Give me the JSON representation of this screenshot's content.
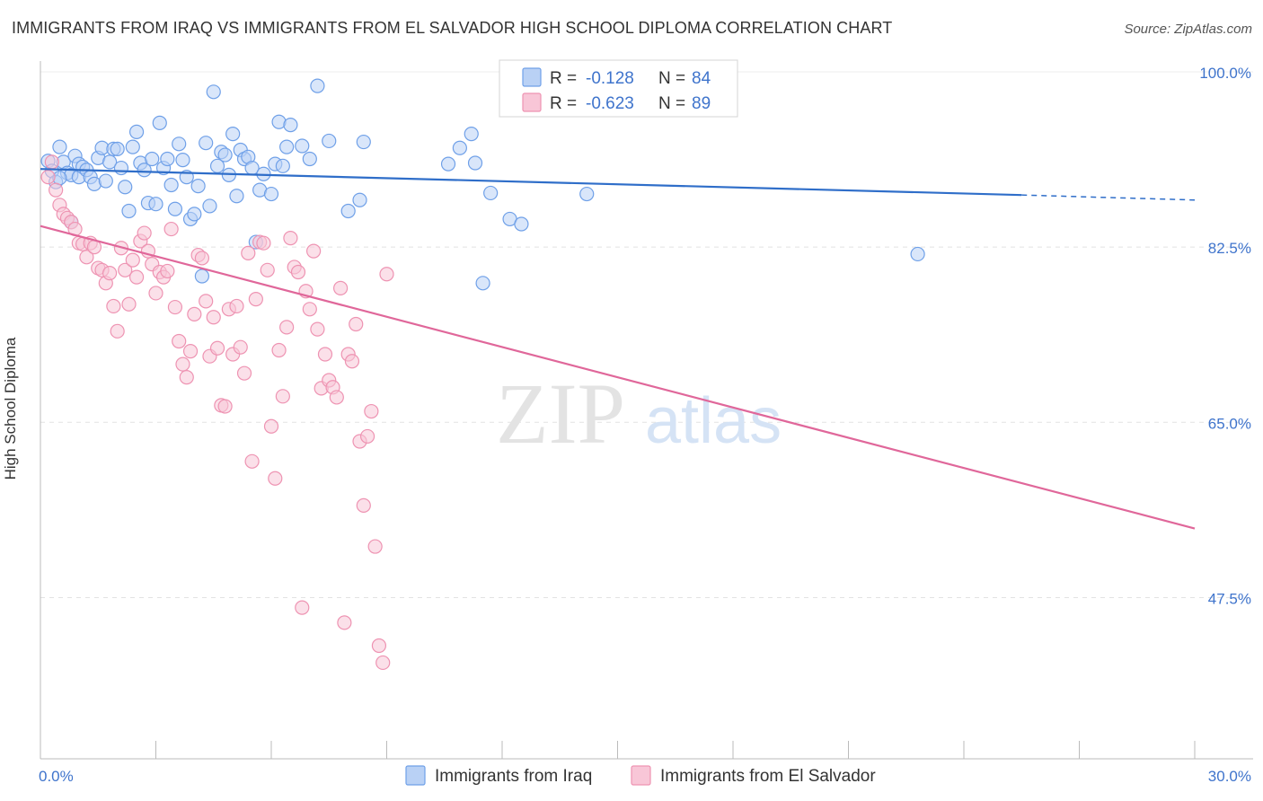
{
  "title": "IMMIGRANTS FROM IRAQ VS IMMIGRANTS FROM EL SALVADOR HIGH SCHOOL DIPLOMA CORRELATION CHART",
  "source": "Source: ZipAtlas.com",
  "watermark": {
    "zip": "ZIP",
    "atlas": "atlas"
  },
  "chart_data": {
    "type": "scatter",
    "ylabel": "High School Diploma",
    "xlim": [
      0.0,
      30.0
    ],
    "ylim": [
      31.4,
      100.0
    ],
    "x_ticks_labels": [
      "0.0%",
      "30.0%"
    ],
    "y_ticks": [
      {
        "value": 100.0,
        "label": "100.0%"
      },
      {
        "value": 82.5,
        "label": "82.5%"
      },
      {
        "value": 65.0,
        "label": "65.0%"
      },
      {
        "value": 47.5,
        "label": "47.5%"
      }
    ],
    "grid": true,
    "legend_position": "top-center",
    "series": [
      {
        "name": "Immigrants from Iraq",
        "color": "#6fa0e8",
        "fill": "#b9d1f5",
        "line_color": "#2f6ec9",
        "r_label": "R =",
        "r_value": "-0.128",
        "n_label": "N =",
        "n_value": "84",
        "trend": {
          "x0": 0.0,
          "y0": 90.3,
          "x1": 25.5,
          "y1": 87.7,
          "dash_x1": 30.0,
          "dash_y1": 87.2
        },
        "points": [
          [
            0.2,
            91.1
          ],
          [
            0.3,
            90.1
          ],
          [
            0.4,
            89.0
          ],
          [
            0.5,
            92.5
          ],
          [
            0.6,
            91.0
          ],
          [
            0.7,
            89.9
          ],
          [
            0.8,
            89.7
          ],
          [
            0.9,
            91.6
          ],
          [
            1.0,
            90.8
          ],
          [
            1.0,
            89.5
          ],
          [
            1.1,
            90.5
          ],
          [
            1.2,
            90.2
          ],
          [
            1.3,
            89.5
          ],
          [
            1.4,
            88.8
          ],
          [
            1.5,
            91.4
          ],
          [
            1.6,
            92.4
          ],
          [
            1.7,
            89.1
          ],
          [
            1.8,
            91.0
          ],
          [
            1.9,
            92.3
          ],
          [
            2.0,
            92.3
          ],
          [
            2.1,
            90.4
          ],
          [
            2.2,
            88.5
          ],
          [
            2.3,
            86.1
          ],
          [
            2.4,
            92.5
          ],
          [
            2.5,
            94.0
          ],
          [
            2.6,
            90.9
          ],
          [
            2.7,
            90.2
          ],
          [
            2.8,
            86.9
          ],
          [
            2.9,
            91.3
          ],
          [
            3.0,
            86.8
          ],
          [
            3.1,
            94.9
          ],
          [
            3.2,
            90.4
          ],
          [
            3.3,
            91.3
          ],
          [
            3.4,
            88.7
          ],
          [
            3.5,
            86.3
          ],
          [
            3.6,
            92.8
          ],
          [
            3.7,
            91.2
          ],
          [
            3.8,
            89.5
          ],
          [
            3.9,
            85.3
          ],
          [
            4.0,
            85.8
          ],
          [
            4.1,
            88.6
          ],
          [
            4.2,
            79.6
          ],
          [
            4.3,
            92.9
          ],
          [
            4.4,
            86.6
          ],
          [
            4.5,
            98.0
          ],
          [
            4.6,
            90.6
          ],
          [
            4.7,
            92.0
          ],
          [
            4.8,
            91.7
          ],
          [
            4.9,
            89.7
          ],
          [
            5.0,
            93.8
          ],
          [
            5.1,
            87.6
          ],
          [
            5.2,
            92.2
          ],
          [
            5.3,
            91.3
          ],
          [
            5.4,
            91.5
          ],
          [
            5.5,
            90.4
          ],
          [
            5.6,
            83.0
          ],
          [
            5.7,
            88.2
          ],
          [
            5.8,
            89.8
          ],
          [
            6.0,
            87.8
          ],
          [
            6.1,
            90.8
          ],
          [
            6.2,
            95.0
          ],
          [
            6.3,
            90.6
          ],
          [
            6.4,
            92.5
          ],
          [
            6.5,
            94.7
          ],
          [
            6.8,
            92.6
          ],
          [
            7.0,
            91.3
          ],
          [
            7.2,
            98.6
          ],
          [
            7.5,
            93.1
          ],
          [
            8.0,
            86.1
          ],
          [
            8.3,
            87.2
          ],
          [
            8.4,
            93.0
          ],
          [
            10.6,
            90.8
          ],
          [
            10.9,
            92.4
          ],
          [
            11.2,
            93.8
          ],
          [
            11.3,
            90.9
          ],
          [
            11.5,
            78.9
          ],
          [
            11.7,
            87.9
          ],
          [
            12.2,
            85.3
          ],
          [
            12.5,
            84.8
          ],
          [
            14.0,
            96.5
          ],
          [
            14.2,
            87.8
          ],
          [
            22.8,
            81.8
          ],
          [
            0.5,
            89.4
          ],
          [
            0.8,
            85.0
          ]
        ]
      },
      {
        "name": "Immigrants from El Salvador",
        "color": "#ee93b2",
        "fill": "#f8c6d7",
        "line_color": "#e0679a",
        "r_label": "R =",
        "r_value": "-0.623",
        "n_label": "N =",
        "n_value": "89",
        "trend": {
          "x0": 0.0,
          "y0": 84.6,
          "x1": 30.0,
          "y1": 54.4
        },
        "points": [
          [
            0.2,
            89.5
          ],
          [
            0.3,
            91.0
          ],
          [
            0.4,
            88.2
          ],
          [
            0.5,
            86.7
          ],
          [
            0.6,
            85.8
          ],
          [
            0.7,
            85.4
          ],
          [
            0.8,
            85.0
          ],
          [
            0.9,
            84.3
          ],
          [
            1.0,
            82.9
          ],
          [
            1.1,
            82.8
          ],
          [
            1.2,
            81.5
          ],
          [
            1.3,
            82.9
          ],
          [
            1.4,
            82.5
          ],
          [
            1.5,
            80.4
          ],
          [
            1.6,
            80.2
          ],
          [
            1.7,
            78.9
          ],
          [
            1.8,
            79.9
          ],
          [
            1.9,
            76.6
          ],
          [
            2.0,
            74.1
          ],
          [
            2.1,
            82.4
          ],
          [
            2.2,
            80.2
          ],
          [
            2.3,
            76.8
          ],
          [
            2.4,
            81.2
          ],
          [
            2.5,
            79.5
          ],
          [
            2.6,
            83.1
          ],
          [
            2.7,
            83.9
          ],
          [
            2.8,
            82.1
          ],
          [
            2.9,
            80.8
          ],
          [
            3.0,
            77.9
          ],
          [
            3.1,
            80.0
          ],
          [
            3.2,
            79.5
          ],
          [
            3.3,
            80.1
          ],
          [
            3.4,
            84.3
          ],
          [
            3.5,
            76.5
          ],
          [
            3.6,
            73.1
          ],
          [
            3.7,
            70.8
          ],
          [
            3.8,
            69.5
          ],
          [
            3.9,
            72.1
          ],
          [
            4.0,
            75.8
          ],
          [
            4.1,
            81.7
          ],
          [
            4.2,
            81.4
          ],
          [
            4.3,
            77.1
          ],
          [
            4.4,
            71.6
          ],
          [
            4.5,
            75.5
          ],
          [
            4.6,
            72.4
          ],
          [
            4.7,
            66.7
          ],
          [
            4.8,
            66.6
          ],
          [
            4.9,
            76.3
          ],
          [
            5.0,
            71.8
          ],
          [
            5.1,
            76.6
          ],
          [
            5.2,
            72.5
          ],
          [
            5.3,
            69.9
          ],
          [
            5.4,
            81.9
          ],
          [
            5.5,
            61.1
          ],
          [
            5.6,
            77.3
          ],
          [
            5.7,
            83.0
          ],
          [
            5.8,
            82.9
          ],
          [
            5.9,
            80.2
          ],
          [
            6.0,
            64.6
          ],
          [
            6.1,
            59.4
          ],
          [
            6.2,
            72.2
          ],
          [
            6.3,
            67.6
          ],
          [
            6.4,
            74.5
          ],
          [
            6.5,
            83.4
          ],
          [
            6.6,
            80.5
          ],
          [
            6.7,
            80.0
          ],
          [
            6.8,
            46.5
          ],
          [
            6.9,
            78.1
          ],
          [
            7.0,
            76.3
          ],
          [
            7.1,
            82.1
          ],
          [
            7.2,
            74.3
          ],
          [
            7.3,
            68.4
          ],
          [
            7.4,
            71.8
          ],
          [
            7.5,
            69.2
          ],
          [
            7.6,
            68.5
          ],
          [
            7.7,
            67.5
          ],
          [
            7.8,
            78.4
          ],
          [
            7.9,
            45.0
          ],
          [
            8.0,
            71.8
          ],
          [
            8.1,
            71.1
          ],
          [
            8.2,
            74.8
          ],
          [
            8.3,
            63.1
          ],
          [
            8.4,
            56.7
          ],
          [
            8.5,
            63.6
          ],
          [
            8.6,
            66.1
          ],
          [
            8.7,
            52.6
          ],
          [
            8.8,
            42.7
          ],
          [
            8.9,
            41.0
          ],
          [
            9.0,
            79.8
          ]
        ]
      }
    ]
  }
}
